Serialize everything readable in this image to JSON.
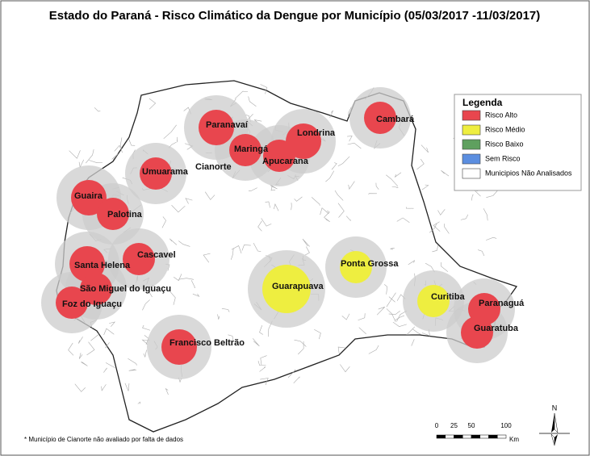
{
  "title": "Estado do Paraná - Risco Climático da Dengue por Município (05/03/2017 -11/03/2017)",
  "legend": {
    "title": "Legenda",
    "items": [
      {
        "label": "Risco Alto",
        "color": "#e8464e"
      },
      {
        "label": "Risco Médio",
        "color": "#eeee40"
      },
      {
        "label": "Risco Baixo",
        "color": "#5fa05f"
      },
      {
        "label": "Sem Risco",
        "color": "#5b8ee0"
      },
      {
        "label": "Municipios Não Analisados",
        "color": "#ffffff"
      }
    ]
  },
  "cities": [
    {
      "name": "Paranavaí",
      "risk": "Risco Alto"
    },
    {
      "name": "Londrina",
      "risk": "Risco Alto"
    },
    {
      "name": "Cambará",
      "risk": "Risco Alto"
    },
    {
      "name": "Maringá",
      "risk": "Risco Alto"
    },
    {
      "name": "Apucarana",
      "risk": "Risco Alto"
    },
    {
      "name": "Cianorte",
      "risk": null
    },
    {
      "name": "Umuarama",
      "risk": "Risco Alto"
    },
    {
      "name": "Guaira",
      "risk": "Risco Alto"
    },
    {
      "name": "Palotina",
      "risk": "Risco Alto"
    },
    {
      "name": "Santa Helena",
      "risk": "Risco Alto"
    },
    {
      "name": "Cascavel",
      "risk": "Risco Alto"
    },
    {
      "name": "São Miguel do Iguaçu",
      "risk": "Risco Alto"
    },
    {
      "name": "Foz do Iguaçu",
      "risk": "Risco Alto"
    },
    {
      "name": "Francisco Beltrão",
      "risk": "Risco Alto"
    },
    {
      "name": "Guarapuava",
      "risk": "Risco Médio"
    },
    {
      "name": "Ponta Grossa",
      "risk": "Risco Médio"
    },
    {
      "name": "Curitiba",
      "risk": "Risco Médio"
    },
    {
      "name": "Paranaguá",
      "risk": "Risco Alto"
    },
    {
      "name": "Guaratuba",
      "risk": "Risco Alto"
    }
  ],
  "scale": {
    "labels": [
      "0",
      "25",
      "50",
      "100"
    ],
    "unit": "Km"
  },
  "north": "N",
  "footnote": "* Município de Cianorte não avaliado por falta de dados"
}
